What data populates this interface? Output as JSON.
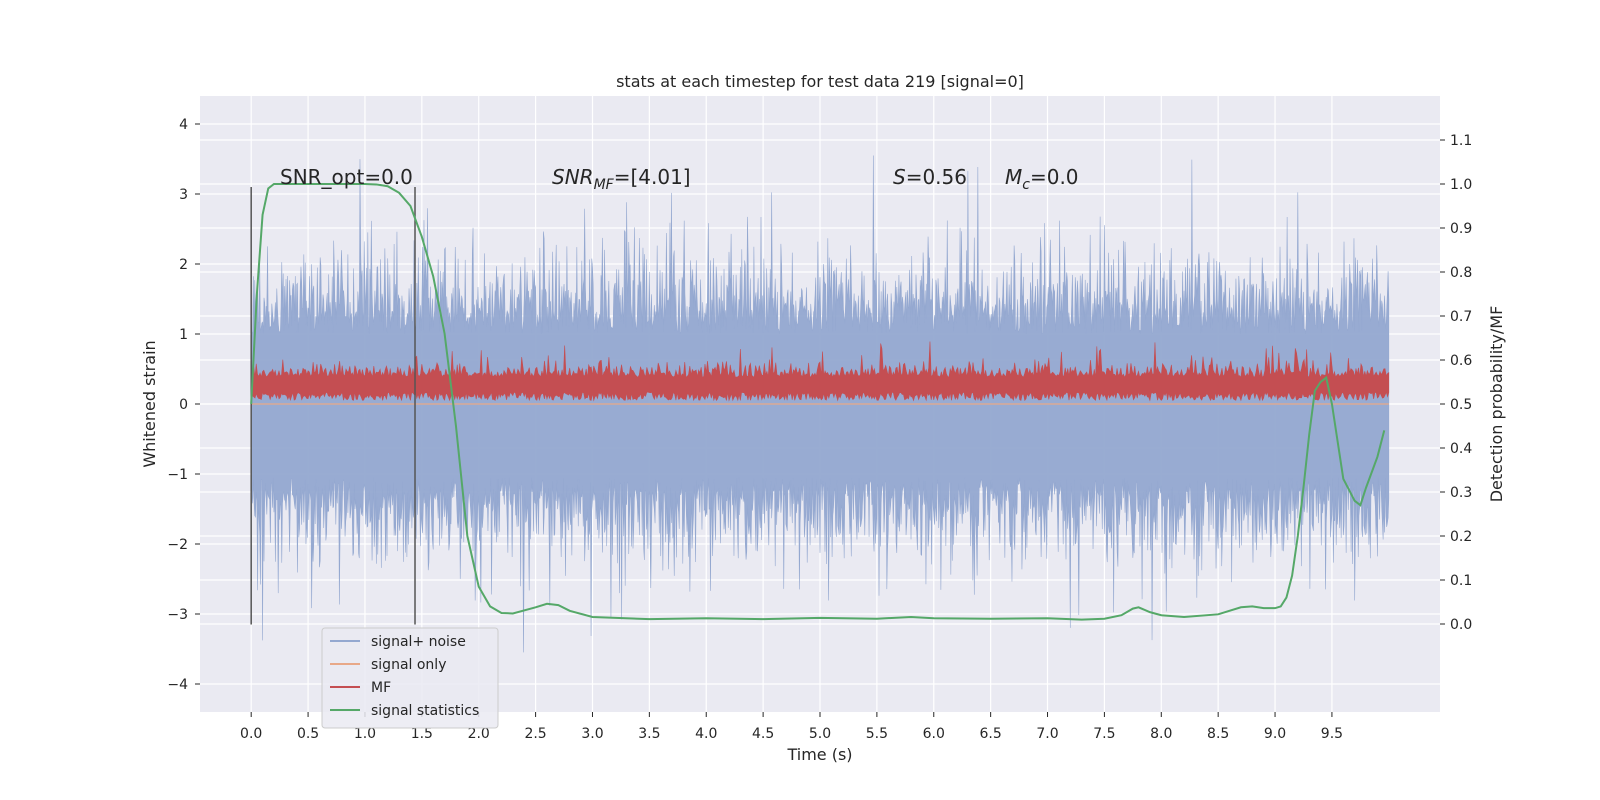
{
  "chart_data": {
    "type": "line",
    "title": "stats at each timestep for test data 219 [signal=0]",
    "xlabel": "Time (s)",
    "ylabel_left": "Whitened strain",
    "ylabel_right": "Detection probability/MF",
    "xlim": [
      -0.45,
      10.45
    ],
    "ylim_left": [
      -4.4,
      4.4
    ],
    "ylim_right": [
      -0.2,
      1.2
    ],
    "x_ticks": [
      "0.0",
      "0.5",
      "1.0",
      "1.5",
      "2.0",
      "2.5",
      "3.0",
      "3.5",
      "4.0",
      "4.5",
      "5.0",
      "5.5",
      "6.0",
      "6.5",
      "7.0",
      "7.5",
      "8.0",
      "8.5",
      "9.0",
      "9.5"
    ],
    "y_ticks_left": [
      "4",
      "3",
      "2",
      "1",
      "0",
      "−1",
      "−2",
      "−3",
      "−4"
    ],
    "y_ticks_right": [
      "1.1",
      "1.0",
      "0.9",
      "0.8",
      "0.7",
      "0.6",
      "0.5",
      "0.4",
      "0.3",
      "0.2",
      "0.1",
      "0.0"
    ],
    "grid": true,
    "legend_position": "lower-left",
    "window": {
      "start": 0.0,
      "end": 1.44,
      "y_min": -3.15,
      "y_max": 3.1
    },
    "series": [
      {
        "name": "signal+ noise",
        "color": "#94a8d0",
        "axis": "left",
        "x_range": [
          0.0,
          10.0
        ],
        "mean": 0.0,
        "typical_range": [
          -1.5,
          1.5
        ],
        "extremes": [
          -4.0,
          4.0
        ]
      },
      {
        "name": "signal only",
        "color": "#e8a888",
        "axis": "left",
        "x": [
          0.0,
          10.0
        ],
        "y": [
          0.0,
          0.0
        ]
      },
      {
        "name": "MF",
        "color": "#c44e52",
        "axis": "left",
        "x_range": [
          0.0,
          10.0
        ],
        "typical_range": [
          0.05,
          0.6
        ],
        "max": 1.0
      },
      {
        "name": "signal statistics",
        "color": "#55a868",
        "axis": "right",
        "x": [
          0.0,
          0.05,
          0.1,
          0.15,
          0.2,
          0.3,
          0.5,
          0.8,
          1.0,
          1.1,
          1.2,
          1.3,
          1.4,
          1.5,
          1.6,
          1.7,
          1.8,
          1.9,
          2.0,
          2.1,
          2.2,
          2.3,
          2.5,
          2.6,
          2.7,
          2.8,
          3.0,
          3.5,
          4.0,
          4.5,
          5.0,
          5.5,
          5.8,
          6.0,
          6.5,
          7.0,
          7.3,
          7.5,
          7.65,
          7.75,
          7.8,
          7.9,
          8.0,
          8.2,
          8.5,
          8.7,
          8.8,
          8.9,
          9.0,
          9.05,
          9.1,
          9.15,
          9.2,
          9.25,
          9.3,
          9.35,
          9.4,
          9.45,
          9.5,
          9.6,
          9.7,
          9.75,
          9.8,
          9.9,
          9.96
        ],
        "y": [
          0.5,
          0.75,
          0.93,
          0.99,
          1.0,
          1.0,
          1.0,
          1.0,
          1.0,
          0.999,
          0.995,
          0.98,
          0.95,
          0.88,
          0.79,
          0.66,
          0.45,
          0.2,
          0.085,
          0.04,
          0.025,
          0.024,
          0.038,
          0.046,
          0.043,
          0.03,
          0.016,
          0.011,
          0.013,
          0.011,
          0.014,
          0.012,
          0.016,
          0.013,
          0.012,
          0.013,
          0.01,
          0.012,
          0.02,
          0.035,
          0.038,
          0.027,
          0.02,
          0.016,
          0.022,
          0.038,
          0.04,
          0.036,
          0.036,
          0.04,
          0.06,
          0.11,
          0.2,
          0.31,
          0.43,
          0.53,
          0.55,
          0.56,
          0.5,
          0.33,
          0.28,
          0.27,
          0.31,
          0.38,
          0.44
        ]
      }
    ],
    "annotations": [
      {
        "label": "SNR_opt",
        "value": "=0.0"
      },
      {
        "label": "SNR",
        "sub": "MF",
        "value": "=[4.01]"
      },
      {
        "label": "S",
        "value": "=0.56"
      },
      {
        "label": "M",
        "sub": "c",
        "value": "=0.0"
      }
    ]
  },
  "colors": {
    "plot_bg": "#eaeaf2",
    "grid": "#ffffff",
    "text": "#262626",
    "window_line": "#555555"
  }
}
